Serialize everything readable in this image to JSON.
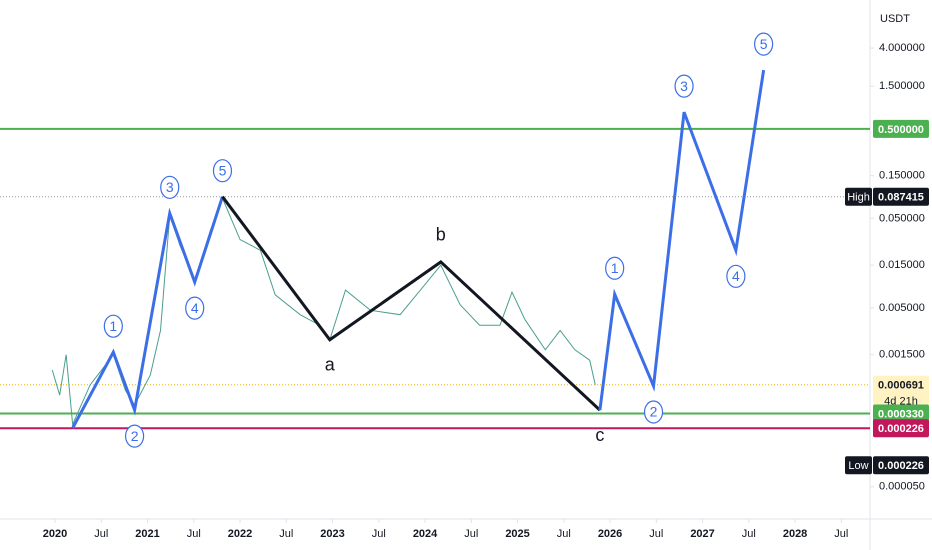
{
  "chart_data": {
    "type": "line",
    "currency": "USDT",
    "log_scale": true,
    "xlim": [
      2019.405,
      2028.81
    ],
    "ylim": [
      2.13e-05,
      13.8
    ],
    "xticks": [
      2020,
      {
        "value": 2020.5,
        "label": "Jul"
      },
      2021,
      {
        "value": 2021.5,
        "label": "Jul"
      },
      2022,
      {
        "value": 2022.5,
        "label": "Jul"
      },
      2023,
      {
        "value": 2023.5,
        "label": "Jul"
      },
      2024,
      {
        "value": 2024.5,
        "label": "Jul"
      },
      2025,
      {
        "value": 2025.5,
        "label": "Jul"
      },
      2026,
      {
        "value": 2026.5,
        "label": "Jul"
      },
      2027,
      {
        "value": 2027.5,
        "label": "Jul"
      },
      2028,
      {
        "value": 2028.5,
        "label": "Jul"
      }
    ],
    "yticks": [
      {
        "value": 4,
        "label": "4.000000"
      },
      {
        "value": 1.5,
        "label": "1.500000"
      },
      {
        "value": 0.15,
        "label": "0.150000"
      },
      {
        "value": 0.05,
        "label": "0.050000"
      },
      {
        "value": 0.015,
        "label": "0.015000"
      },
      {
        "value": 0.005,
        "label": "0.005000"
      },
      {
        "value": 0.0015,
        "label": "0.001500"
      },
      {
        "value": 5e-05,
        "label": "0.000050"
      }
    ],
    "series": [
      {
        "color": "#4a9e8e",
        "width": 1,
        "x": [
          2019.97,
          2020.05,
          2020.12,
          2020.19,
          2020.38,
          2020.63,
          2020.76,
          2020.86,
          2021.03,
          2021.14,
          2021.24,
          2021.35,
          2021.51,
          2021.68,
          2021.81,
          2022.0,
          2022.22,
          2022.38,
          2022.65,
          2022.86,
          2022.97,
          2023.14,
          2023.41,
          2023.73,
          2023.95,
          2024.17,
          2024.38,
          2024.59,
          2024.81,
          2024.94,
          2025.08,
          2025.3,
          2025.46,
          2025.62,
          2025.78,
          2025.84
        ],
        "values": [
          0.00101,
          0.00053,
          0.0015,
          0.00025,
          0.00069,
          0.0015,
          0.0006,
          0.00041,
          0.00089,
          0.0028,
          0.054,
          0.025,
          0.0102,
          0.037,
          0.084,
          0.029,
          0.022,
          0.007,
          0.0042,
          0.0032,
          0.0022,
          0.0079,
          0.0047,
          0.0042,
          0.0079,
          0.015,
          0.0054,
          0.0032,
          0.0032,
          0.0075,
          0.0037,
          0.0017,
          0.0028,
          0.0017,
          0.0013,
          0.000691
        ]
      },
      {
        "color": "#3c6ee8",
        "width": 3,
        "label_style": "circle",
        "x": [
          2020.19,
          2020.63,
          2020.86,
          2021.24,
          2021.51,
          2021.81
        ],
        "values": [
          0.000226,
          0.0016,
          0.00036,
          0.057,
          0.0097,
          0.087415
        ],
        "labels": [
          null,
          "1",
          "2",
          "3",
          "4",
          "5"
        ]
      },
      {
        "color": "#131722",
        "width": 3,
        "label_style": "plain",
        "x": [
          2021.81,
          2022.97,
          2024.17,
          2025.89
        ],
        "values": [
          0.087415,
          0.0022,
          0.0163,
          0.00036
        ],
        "labels": [
          null,
          "a",
          "b",
          "c"
        ]
      },
      {
        "color": "#3c6ee8",
        "width": 3,
        "label_style": "circle",
        "x": [
          2025.89,
          2026.05,
          2026.47,
          2026.8,
          2027.36,
          2027.66
        ],
        "values": [
          0.00036,
          0.0071,
          0.00067,
          0.77,
          0.022,
          2.27
        ],
        "labels": [
          null,
          "1",
          "2",
          "3",
          "4",
          "5"
        ]
      }
    ],
    "hlines": [
      {
        "value": 0.5,
        "label": "0.500000",
        "line_color": "#4caf50",
        "tag_color": "#4caf50",
        "text_color": "#ffffff",
        "style": "solid"
      },
      {
        "value": 0.087415,
        "label": "0.087415",
        "tag": "High",
        "line_color": "#9598a1",
        "tag_color": "#131722",
        "text_color": "#ffffff",
        "style": "dotted"
      },
      {
        "value": 0.000691,
        "label": "0.000691",
        "sub": "4d 21h",
        "line_color": "#f0b400",
        "tag_color": "#fff3c4",
        "text_color": "#131722",
        "style": "dotted"
      },
      {
        "value": 0.00033,
        "label": "0.000330",
        "line_color": "#4caf50",
        "tag_color": "#4caf50",
        "text_color": "#ffffff",
        "style": "solid"
      },
      {
        "value": 0.000226,
        "label": "0.000226",
        "line_color": "#c2185b",
        "tag_color": "#c2185b",
        "text_color": "#ffffff",
        "style": "solid"
      }
    ],
    "low": {
      "tag": "Low",
      "value": 0.000226,
      "label": "0.000226"
    }
  }
}
